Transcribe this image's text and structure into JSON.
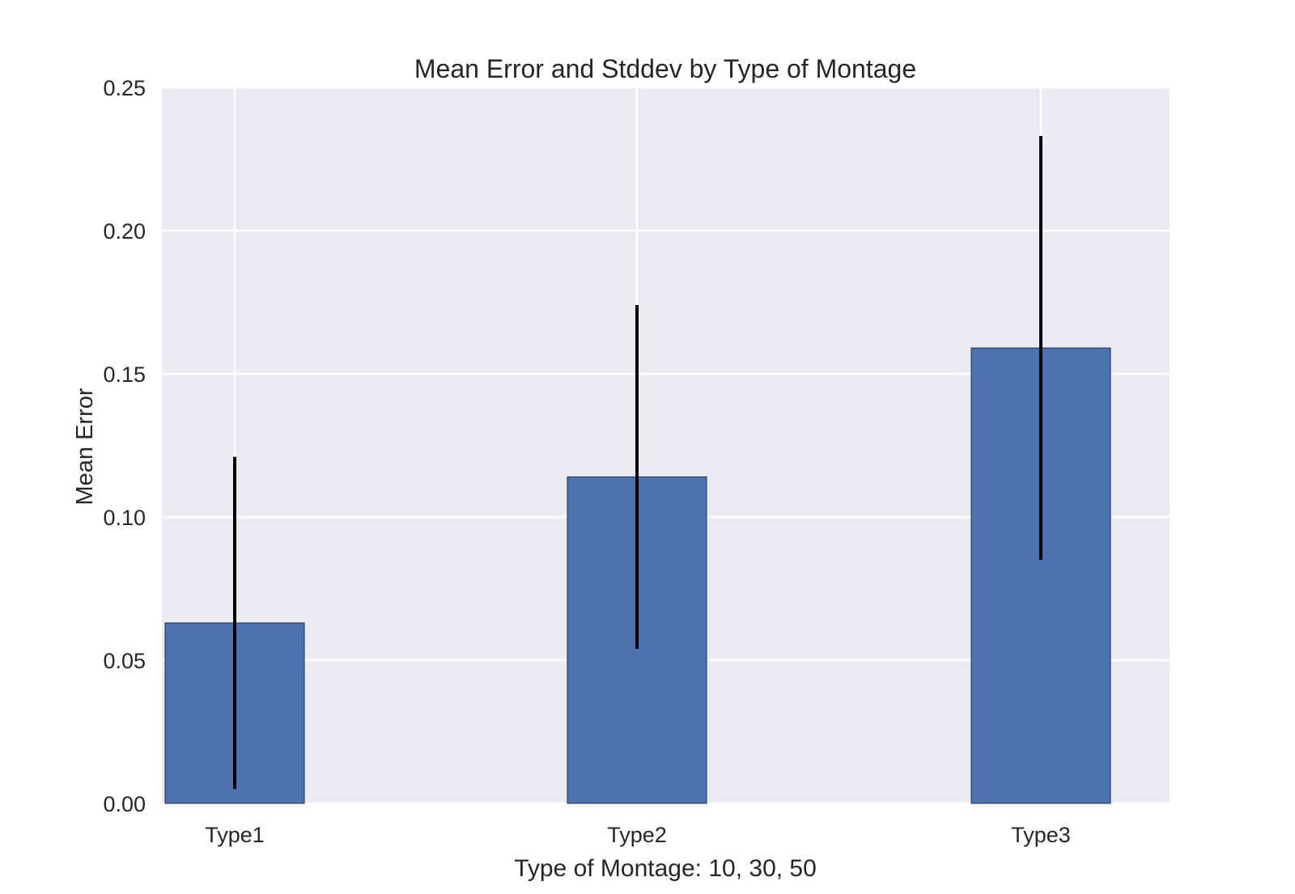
{
  "chart_data": {
    "type": "bar",
    "title": "Mean Error and Stddev by Type of Montage",
    "xlabel": "Type of Montage: 10, 30, 50",
    "ylabel": "Mean Error",
    "categories": [
      "Type1",
      "Type2",
      "Type3"
    ],
    "values": [
      0.063,
      0.114,
      0.159
    ],
    "error_low": [
      0.005,
      0.054,
      0.085
    ],
    "error_high": [
      0.121,
      0.174,
      0.233
    ],
    "ylim": [
      0,
      0.25
    ],
    "yticks": [
      "0.00",
      "0.05",
      "0.10",
      "0.15",
      "0.20",
      "0.25"
    ],
    "grid": true,
    "colors": {
      "bar": "#4c72b0",
      "bar_edge": "#1f2d46",
      "error_bar": "#000000",
      "plot_background": "#eaeaf2",
      "grid": "#ffffff"
    }
  }
}
